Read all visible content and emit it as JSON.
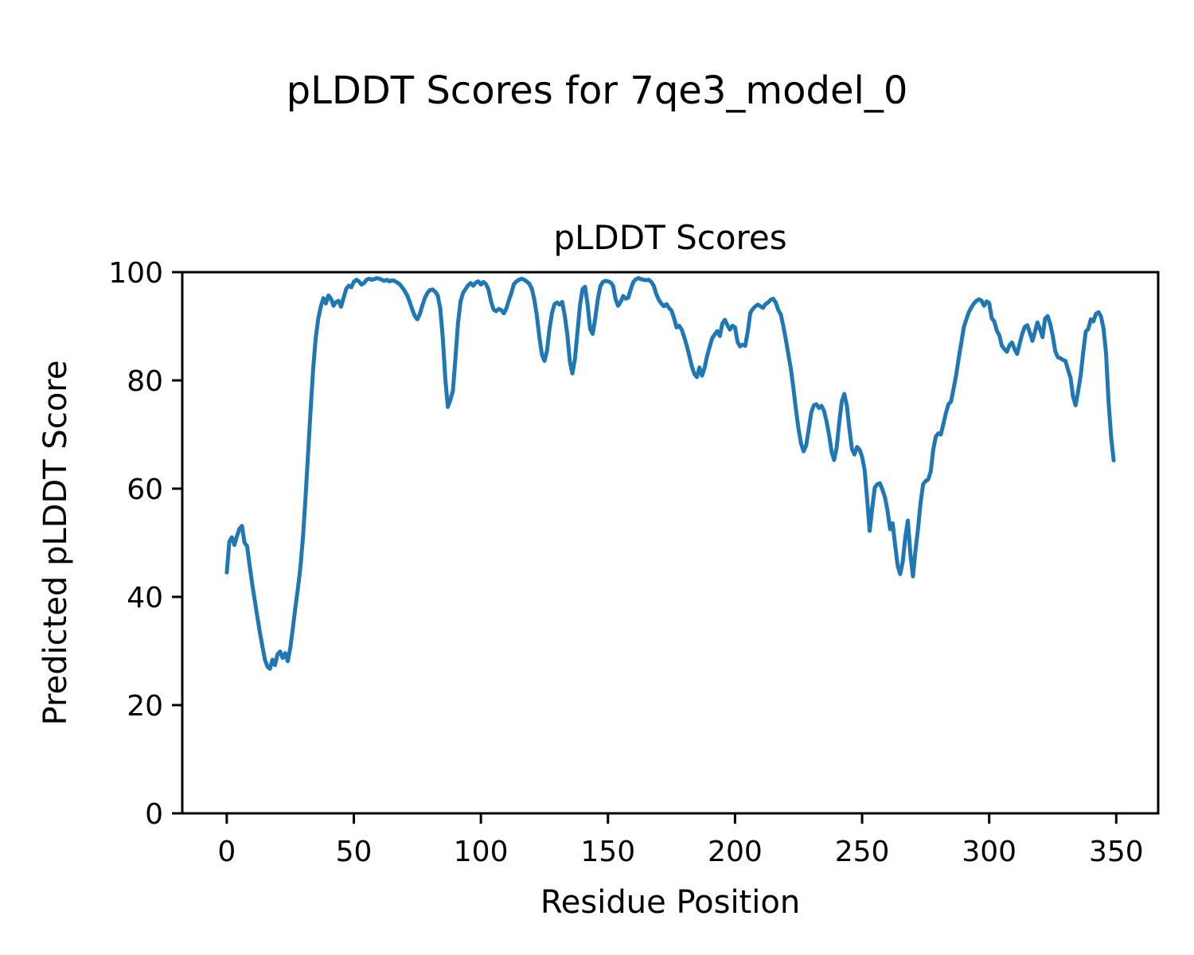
{
  "figure": {
    "title": "pLDDT Scores for 7qe3_model_0"
  },
  "chart_data": {
    "type": "line",
    "title": "pLDDT Scores",
    "xlabel": "Residue Position",
    "ylabel": "Predicted pLDDT Score",
    "x_ticks": [
      0,
      50,
      100,
      150,
      200,
      250,
      300,
      350
    ],
    "y_ticks": [
      0,
      20,
      40,
      60,
      80,
      100
    ],
    "xlim": [
      -17.5,
      366.5
    ],
    "ylim": [
      0,
      100
    ],
    "grid": false,
    "legend_position": "none",
    "line_color": "#1f77b4",
    "axis_color": "#000000",
    "line_width": 5,
    "series": [
      {
        "name": "pLDDT",
        "x_start": 0,
        "x_step": 1,
        "values": [
          44.5,
          50.2,
          51.0,
          49.6,
          51.2,
          52.6,
          53.1,
          50.0,
          49.4,
          45.8,
          42.4,
          39.4,
          36.4,
          33.5,
          30.9,
          28.4,
          27.1,
          26.7,
          28.4,
          27.4,
          29.4,
          29.9,
          28.7,
          29.6,
          28.1,
          30.6,
          34.2,
          38.1,
          41.6,
          45.6,
          51.2,
          58.3,
          66.4,
          74.5,
          82.1,
          87.8,
          91.4,
          93.6,
          95.2,
          94.2,
          95.7,
          95.1,
          93.8,
          94.5,
          94.7,
          93.6,
          95.3,
          96.9,
          97.5,
          97.2,
          98.2,
          98.6,
          98.3,
          97.7,
          98.0,
          98.6,
          98.8,
          98.6,
          98.7,
          98.9,
          98.8,
          98.6,
          98.4,
          98.6,
          98.3,
          98.5,
          98.4,
          98.1,
          97.8,
          97.2,
          96.5,
          95.7,
          94.5,
          93.1,
          91.9,
          91.3,
          92.3,
          93.9,
          95.3,
          96.2,
          96.7,
          96.8,
          96.4,
          95.7,
          93.3,
          87.8,
          80.4,
          75.1,
          76.4,
          78.1,
          84.2,
          90.6,
          94.6,
          96.2,
          96.9,
          97.6,
          98.0,
          97.5,
          98.1,
          98.3,
          97.7,
          98.2,
          97.8,
          96.8,
          94.6,
          93.1,
          92.8,
          93.2,
          93.0,
          92.4,
          93.3,
          94.8,
          96.2,
          97.8,
          98.3,
          98.6,
          98.8,
          98.6,
          98.3,
          97.9,
          97.0,
          95.0,
          92.0,
          88.0,
          84.8,
          83.6,
          85.5,
          89.5,
          92.5,
          94.1,
          94.4,
          94.0,
          94.5,
          92.0,
          88.5,
          83.5,
          81.3,
          84.0,
          89.0,
          94.0,
          96.9,
          97.3,
          94.0,
          89.5,
          88.6,
          91.5,
          95.0,
          97.4,
          98.2,
          98.4,
          98.3,
          98.1,
          97.5,
          95.0,
          93.8,
          94.5,
          95.6,
          95.1,
          95.3,
          96.9,
          98.2,
          98.7,
          98.9,
          98.7,
          98.6,
          98.5,
          98.6,
          98.2,
          97.5,
          96.0,
          94.9,
          94.2,
          93.7,
          94.1,
          93.4,
          92.9,
          91.5,
          89.8,
          90.1,
          89.4,
          88.0,
          86.4,
          84.6,
          82.6,
          81.2,
          80.6,
          82.4,
          80.9,
          82.3,
          84.5,
          86.2,
          87.8,
          88.5,
          89.1,
          88.2,
          90.5,
          91.2,
          90.2,
          89.4,
          90.1,
          89.8,
          87.1,
          86.3,
          86.6,
          86.4,
          89.0,
          92.5,
          93.2,
          93.7,
          94.0,
          93.7,
          93.4,
          94.1,
          94.4,
          94.9,
          95.1,
          94.4,
          93.0,
          92.2,
          90.0,
          87.5,
          84.7,
          82.0,
          78.5,
          74.5,
          71.0,
          68.3,
          66.9,
          68.0,
          71.0,
          74.1,
          75.4,
          75.6,
          74.9,
          75.3,
          74.4,
          72.4,
          70.0,
          66.8,
          65.3,
          67.6,
          72.2,
          76.1,
          77.5,
          75.3,
          71.0,
          67.3,
          66.3,
          67.7,
          67.2,
          65.9,
          63.5,
          58.0,
          52.2,
          56.5,
          60.2,
          60.8,
          61.0,
          59.8,
          58.4,
          55.9,
          52.5,
          53.6,
          49.5,
          45.8,
          44.2,
          46.5,
          51.0,
          54.1,
          48.0,
          43.8,
          48.6,
          52.6,
          57.4,
          60.8,
          61.4,
          61.7,
          63.2,
          67.2,
          69.6,
          70.2,
          70.0,
          72.0,
          74.0,
          75.6,
          76.1,
          78.5,
          81.0,
          84.1,
          86.9,
          89.8,
          91.3,
          92.6,
          93.5,
          94.2,
          94.7,
          95.0,
          94.7,
          93.8,
          94.6,
          94.3,
          91.5,
          90.9,
          89.2,
          88.3,
          86.4,
          85.8,
          85.3,
          86.5,
          87.0,
          85.8,
          84.9,
          86.8,
          88.6,
          89.9,
          90.2,
          88.8,
          87.3,
          89.0,
          90.7,
          89.5,
          88.0,
          91.4,
          91.9,
          90.5,
          88.3,
          85.4,
          84.3,
          84.1,
          83.8,
          83.6,
          82.0,
          80.5,
          77.0,
          75.4,
          78.0,
          80.9,
          85.2,
          89.0,
          89.5,
          91.3,
          90.9,
          92.3,
          92.6,
          91.8,
          89.5,
          85.0,
          76.0,
          69.5,
          65.2
        ]
      }
    ]
  }
}
